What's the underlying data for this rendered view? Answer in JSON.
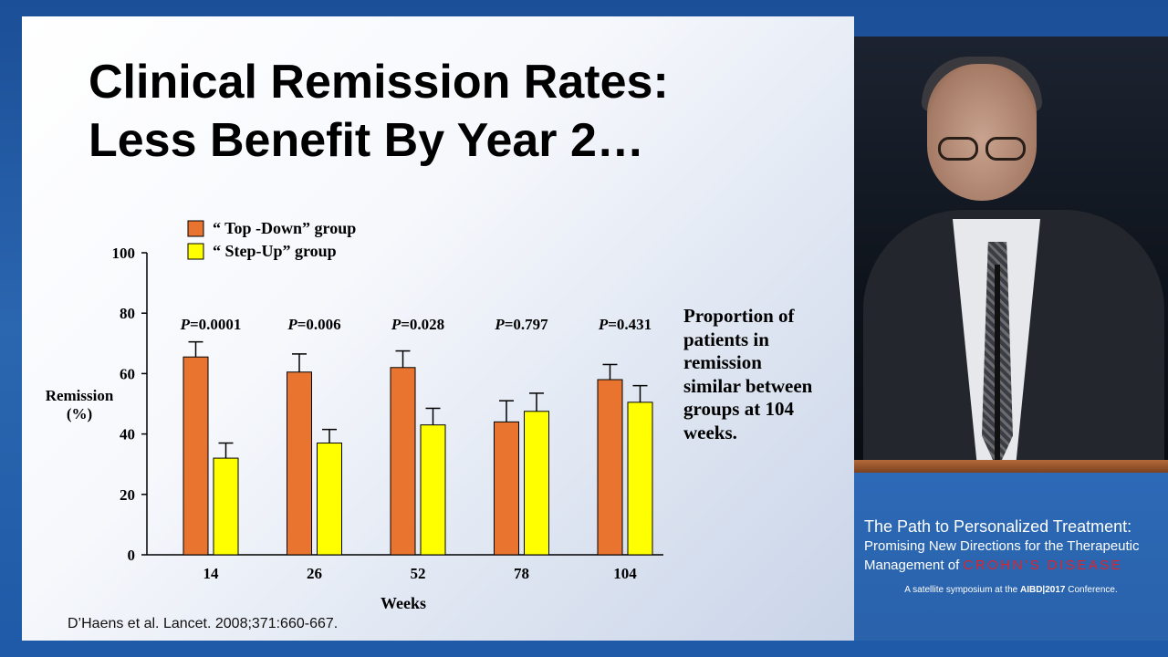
{
  "slide": {
    "title_line1": "Clinical Remission Rates:",
    "title_line2": "Less Benefit By Year 2…",
    "side_note": "Proportion of patients in remission similar between groups at 104 weeks.",
    "citation": "D’Haens et al.  Lancet.  2008;371:660-667."
  },
  "chart_data": {
    "type": "bar",
    "categories": [
      "14",
      "26",
      "52",
      "78",
      "104"
    ],
    "series": [
      {
        "name": "“ Top -Down” group",
        "color": "#e8742f",
        "values": [
          65.5,
          60.5,
          62,
          44,
          58
        ],
        "errors": [
          5,
          6,
          5.5,
          7,
          5
        ]
      },
      {
        "name": "“ Step-Up” group",
        "color": "#ffff00",
        "values": [
          32,
          37,
          43,
          47.5,
          50.5
        ],
        "errors": [
          5,
          4.5,
          5.5,
          6,
          5.5
        ]
      }
    ],
    "p_values": [
      {
        "label": "P",
        "value": "=0.0001"
      },
      {
        "label": "P",
        "value": "=0.006"
      },
      {
        "label": "P",
        "value": "=0.028"
      },
      {
        "label": "P",
        "value": "=0.797"
      },
      {
        "label": "P",
        "value": "=0.431"
      }
    ],
    "yticks": [
      "0",
      "20",
      "40",
      "60",
      "80",
      "100"
    ],
    "ylim": [
      0,
      100
    ],
    "xlabel": "Weeks",
    "ylabel_line1": "Remission",
    "ylabel_line2": "(%)",
    "legend_position": "top-left"
  },
  "symposium": {
    "line1": "The Path to Personalized Treatment:",
    "line2": "Promising New Directions for the Therapeutic",
    "line3_prefix": "Management of",
    "line3_highlight": "CROHN’S DISEASE",
    "line4_prefix": "A satellite symposium at the ",
    "line4_bold": "AIBD|2017",
    "line4_suffix": " Conference.",
    "crohns_color": "#e0242a"
  }
}
